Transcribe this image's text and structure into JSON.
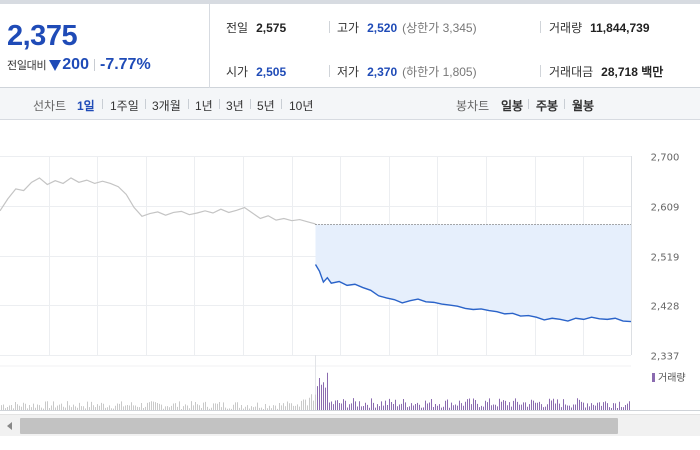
{
  "quote": {
    "price": "2,375",
    "change_label": "전일대비",
    "change_amount": "200",
    "change_percent": "-7.77%",
    "cells": {
      "prev_close": {
        "label": "전일",
        "value": "2,575"
      },
      "high": {
        "label": "고가",
        "value": "2,520",
        "sub": "(상한가 3,345)"
      },
      "volume": {
        "label": "거래량",
        "value": "11,844,739"
      },
      "open": {
        "label": "시가",
        "value": "2,505"
      },
      "low": {
        "label": "저가",
        "value": "2,370",
        "sub": "(하한가 1,805)"
      },
      "amount": {
        "label": "거래대금",
        "value": "28,718 백만"
      }
    },
    "colors": {
      "down": "#1f4bb7",
      "text": "#222222"
    }
  },
  "tabs": {
    "line_label": "선차트",
    "periods": [
      "1일",
      "1주일",
      "3개월",
      "1년",
      "3년",
      "5년",
      "10년"
    ],
    "active_period": "1일",
    "candle_label": "봉차트",
    "candles": [
      "일봉",
      "주봉",
      "월봉"
    ]
  },
  "chart_data": {
    "type": "line",
    "y_ticks": [
      "2,700",
      "2,609",
      "2,519",
      "2,428",
      "2,337"
    ],
    "ylim": [
      2337,
      2700
    ],
    "prev_close": 2575,
    "prev_day": {
      "x": [
        0,
        2,
        4,
        6,
        8,
        10,
        12,
        14,
        16,
        18,
        20,
        22,
        24,
        26,
        28,
        30,
        32,
        34,
        36,
        38,
        40,
        42,
        44,
        46,
        48,
        50,
        52,
        54,
        56,
        58,
        60,
        62,
        64,
        66,
        68,
        70,
        72,
        74,
        76,
        78,
        80
      ],
      "values": [
        2600,
        2622,
        2640,
        2637,
        2652,
        2660,
        2648,
        2655,
        2650,
        2660,
        2652,
        2656,
        2650,
        2654,
        2650,
        2644,
        2630,
        2606,
        2590,
        2595,
        2598,
        2592,
        2597,
        2599,
        2593,
        2596,
        2600,
        2596,
        2603,
        2597,
        2601,
        2606,
        2596,
        2586,
        2591,
        2583,
        2586,
        2582,
        2584,
        2580,
        2576
      ]
    },
    "today": {
      "x": [
        80,
        81,
        82,
        83,
        84,
        86,
        88,
        90,
        92,
        94,
        96,
        98,
        100,
        102,
        104,
        106,
        108,
        110,
        112,
        114,
        116,
        118,
        120,
        122,
        124,
        126,
        128,
        130,
        132,
        134,
        136,
        138,
        140,
        142,
        144,
        146,
        148,
        150,
        152,
        154,
        156,
        158,
        160
      ],
      "values": [
        2502,
        2490,
        2470,
        2478,
        2468,
        2471,
        2464,
        2466,
        2460,
        2455,
        2445,
        2441,
        2438,
        2432,
        2436,
        2439,
        2434,
        2433,
        2430,
        2428,
        2426,
        2422,
        2420,
        2421,
        2418,
        2416,
        2412,
        2413,
        2408,
        2409,
        2406,
        2401,
        2404,
        2402,
        2399,
        2404,
        2402,
        2406,
        2403,
        2402,
        2404,
        2399,
        2398
      ]
    },
    "xlim": [
      0,
      160
    ],
    "volume": {
      "legend": "거래량",
      "color": "#8b6bb0"
    }
  }
}
